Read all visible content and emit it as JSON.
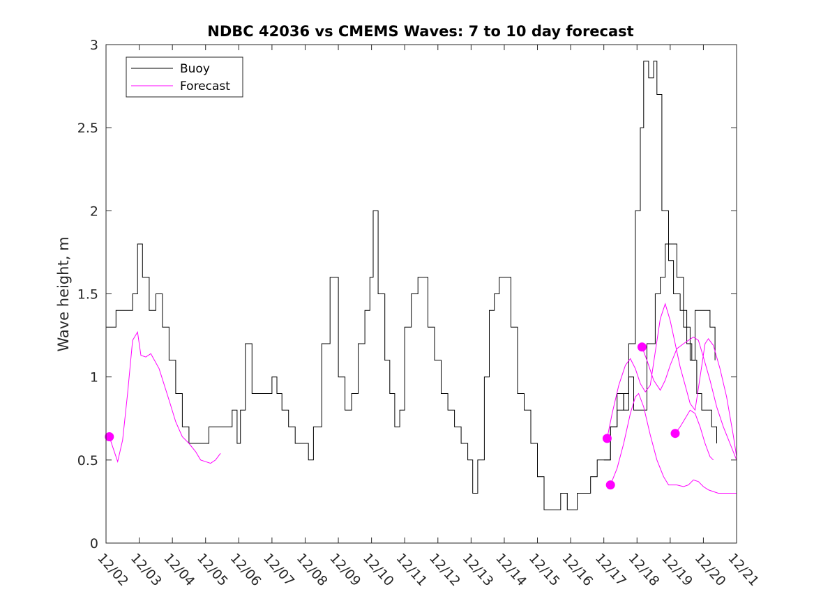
{
  "chart_data": {
    "type": "line",
    "title": "NDBC 42036 vs CMEMS Waves: 7 to 10 day forecast",
    "xlabel": "",
    "ylabel": "Wave height, m",
    "xlim": [
      0,
      19
    ],
    "ylim": [
      0,
      3
    ],
    "x_ticks": [
      0,
      1,
      2,
      3,
      4,
      5,
      6,
      7,
      8,
      9,
      10,
      11,
      12,
      13,
      14,
      15,
      16,
      17,
      18,
      19
    ],
    "x_tick_labels": [
      "12/02",
      "12/03",
      "12/04",
      "12/05",
      "12/06",
      "12/07",
      "12/08",
      "12/09",
      "12/10",
      "12/11",
      "12/12",
      "12/13",
      "12/14",
      "12/15",
      "12/16",
      "12/17",
      "12/18",
      "12/19",
      "12/20",
      "12/21"
    ],
    "y_ticks": [
      0,
      0.5,
      1,
      1.5,
      2,
      2.5,
      3
    ],
    "y_tick_labels": [
      "0",
      "0.5",
      "1",
      "1.5",
      "2",
      "2.5",
      "3"
    ],
    "grid": false,
    "legend_position": "top-left",
    "series": [
      {
        "name": "Buoy",
        "color": "#000000",
        "step": 0.04,
        "anchors": [
          [
            0,
            1.3
          ],
          [
            0.3,
            1.35
          ],
          [
            0.6,
            1.4
          ],
          [
            0.8,
            1.5
          ],
          [
            0.95,
            1.8
          ],
          [
            1.1,
            1.6
          ],
          [
            1.3,
            1.45
          ],
          [
            1.5,
            1.5
          ],
          [
            1.7,
            1.3
          ],
          [
            1.9,
            1.1
          ],
          [
            2.1,
            0.85
          ],
          [
            2.3,
            0.7
          ],
          [
            2.5,
            0.6
          ],
          [
            2.7,
            0.55
          ],
          [
            2.9,
            0.62
          ],
          [
            3.1,
            0.65
          ],
          [
            3.3,
            0.7
          ],
          [
            3.5,
            0.72
          ],
          [
            3.65,
            0.7
          ],
          [
            3.8,
            0.78
          ],
          [
            3.95,
            0.62
          ],
          [
            4.05,
            0.8
          ],
          [
            4.2,
            1.2
          ],
          [
            4.4,
            0.9
          ],
          [
            4.6,
            0.85
          ],
          [
            4.8,
            0.95
          ],
          [
            5.0,
            0.97
          ],
          [
            5.15,
            0.85
          ],
          [
            5.3,
            0.75
          ],
          [
            5.5,
            0.65
          ],
          [
            5.7,
            0.6
          ],
          [
            5.9,
            0.55
          ],
          [
            6.1,
            0.5
          ],
          [
            6.25,
            0.7
          ],
          [
            6.5,
            1.2
          ],
          [
            6.75,
            1.55
          ],
          [
            7.0,
            1.0
          ],
          [
            7.2,
            0.75
          ],
          [
            7.4,
            0.9
          ],
          [
            7.6,
            1.2
          ],
          [
            7.8,
            1.45
          ],
          [
            7.95,
            1.6
          ],
          [
            8.05,
            2.0
          ],
          [
            8.2,
            1.5
          ],
          [
            8.4,
            1.15
          ],
          [
            8.55,
            0.85
          ],
          [
            8.7,
            0.65
          ],
          [
            8.85,
            0.8
          ],
          [
            9.0,
            1.3
          ],
          [
            9.2,
            1.5
          ],
          [
            9.4,
            1.65
          ],
          [
            9.5,
            1.55
          ],
          [
            9.7,
            1.3
          ],
          [
            9.9,
            1.1
          ],
          [
            10.1,
            0.95
          ],
          [
            10.3,
            0.75
          ],
          [
            10.5,
            0.65
          ],
          [
            10.7,
            0.6
          ],
          [
            10.9,
            0.45
          ],
          [
            11.05,
            0.3
          ],
          [
            11.2,
            0.5
          ],
          [
            11.4,
            1.0
          ],
          [
            11.55,
            1.4
          ],
          [
            11.7,
            1.5
          ],
          [
            11.85,
            1.65
          ],
          [
            12.0,
            1.6
          ],
          [
            12.2,
            1.3
          ],
          [
            12.4,
            0.95
          ],
          [
            12.6,
            0.75
          ],
          [
            12.8,
            0.55
          ],
          [
            13.0,
            0.4
          ],
          [
            13.2,
            0.2
          ],
          [
            13.5,
            0.2
          ],
          [
            13.7,
            0.3
          ],
          [
            13.9,
            0.2
          ],
          [
            14.2,
            0.3
          ],
          [
            14.4,
            0.35
          ],
          [
            14.6,
            0.4
          ],
          [
            14.8,
            0.45
          ],
          [
            15.0,
            0.5
          ],
          [
            15.2,
            0.65
          ],
          [
            15.4,
            0.8
          ],
          [
            15.6,
            0.9
          ],
          [
            15.75,
            1.2
          ],
          [
            15.95,
            2.0
          ],
          [
            16.1,
            2.5
          ],
          [
            16.2,
            2.9
          ],
          [
            16.35,
            2.75
          ],
          [
            16.5,
            2.85
          ],
          [
            16.6,
            2.7
          ],
          [
            16.75,
            2.0
          ],
          [
            16.95,
            1.7
          ],
          [
            17.1,
            1.5
          ],
          [
            17.3,
            1.4
          ],
          [
            17.5,
            1.2
          ],
          [
            17.65,
            1.05
          ],
          [
            17.8,
            0.9
          ],
          [
            17.95,
            0.8
          ],
          [
            18.1,
            0.75
          ],
          [
            18.25,
            0.65
          ],
          [
            18.4,
            0.6
          ]
        ]
      },
      {
        "name": "Buoy",
        "color": "#000000",
        "step": 0.04,
        "anchors": [
          [
            15.0,
            0.5
          ],
          [
            15.2,
            0.7
          ],
          [
            15.4,
            0.85
          ],
          [
            15.6,
            0.75
          ],
          [
            15.75,
            1.0
          ],
          [
            15.9,
            0.8
          ],
          [
            16.1,
            0.8
          ],
          [
            16.3,
            1.2
          ],
          [
            16.55,
            1.5
          ],
          [
            16.7,
            1.6
          ],
          [
            16.85,
            1.8
          ],
          [
            17.0,
            1.75
          ],
          [
            17.2,
            1.55
          ],
          [
            17.4,
            1.3
          ],
          [
            17.6,
            1.1
          ],
          [
            17.75,
            1.4
          ],
          [
            17.9,
            1.35
          ],
          [
            18.05,
            1.4
          ],
          [
            18.2,
            1.3
          ],
          [
            18.35,
            1.15
          ]
        ]
      },
      {
        "name": "Forecast",
        "color": "#ff00ff",
        "anchors": [
          [
            0.1,
            0.64
          ],
          [
            0.2,
            0.58
          ],
          [
            0.35,
            0.49
          ],
          [
            0.5,
            0.62
          ],
          [
            0.65,
            0.9
          ],
          [
            0.8,
            1.22
          ],
          [
            0.95,
            1.27
          ],
          [
            1.05,
            1.13
          ],
          [
            1.2,
            1.12
          ],
          [
            1.35,
            1.14
          ],
          [
            1.6,
            1.05
          ],
          [
            1.9,
            0.86
          ],
          [
            2.1,
            0.73
          ],
          [
            2.3,
            0.64
          ],
          [
            2.5,
            0.6
          ],
          [
            2.7,
            0.55
          ],
          [
            2.85,
            0.5
          ],
          [
            3.0,
            0.49
          ],
          [
            3.15,
            0.48
          ],
          [
            3.3,
            0.5
          ],
          [
            3.45,
            0.54
          ]
        ]
      },
      {
        "name": "Forecast",
        "color": "#ff00ff",
        "anchors": [
          [
            15.1,
            0.63
          ],
          [
            15.25,
            0.78
          ],
          [
            15.45,
            0.95
          ],
          [
            15.65,
            1.07
          ],
          [
            15.8,
            1.11
          ],
          [
            15.95,
            1.05
          ],
          [
            16.1,
            0.96
          ],
          [
            16.25,
            0.91
          ],
          [
            16.4,
            0.95
          ],
          [
            16.55,
            1.15
          ],
          [
            16.7,
            1.35
          ],
          [
            16.85,
            1.44
          ],
          [
            17.0,
            1.34
          ],
          [
            17.15,
            1.2
          ],
          [
            17.3,
            1.06
          ],
          [
            17.45,
            0.95
          ],
          [
            17.6,
            0.84
          ],
          [
            17.75,
            0.8
          ],
          [
            17.9,
            1.0
          ],
          [
            18.05,
            1.2
          ],
          [
            18.15,
            1.23
          ],
          [
            18.3,
            1.19
          ],
          [
            18.5,
            1.05
          ],
          [
            18.7,
            0.88
          ],
          [
            18.9,
            0.65
          ],
          [
            19.0,
            0.52
          ]
        ]
      },
      {
        "name": "Forecast",
        "color": "#ff00ff",
        "anchors": [
          [
            16.15,
            1.18
          ],
          [
            16.3,
            1.1
          ],
          [
            16.5,
            0.98
          ],
          [
            16.7,
            0.92
          ],
          [
            16.85,
            0.98
          ],
          [
            17.0,
            1.07
          ],
          [
            17.2,
            1.17
          ],
          [
            17.4,
            1.2
          ],
          [
            17.55,
            1.22
          ],
          [
            17.7,
            1.24
          ],
          [
            17.85,
            1.22
          ],
          [
            18.0,
            1.12
          ],
          [
            18.2,
            0.98
          ],
          [
            18.4,
            0.82
          ],
          [
            18.6,
            0.7
          ],
          [
            18.8,
            0.6
          ],
          [
            19.0,
            0.5
          ]
        ]
      },
      {
        "name": "Forecast",
        "color": "#ff00ff",
        "anchors": [
          [
            15.2,
            0.35
          ],
          [
            15.4,
            0.45
          ],
          [
            15.6,
            0.6
          ],
          [
            15.8,
            0.78
          ],
          [
            15.95,
            0.88
          ],
          [
            16.05,
            0.9
          ],
          [
            16.2,
            0.82
          ],
          [
            16.4,
            0.65
          ],
          [
            16.6,
            0.5
          ],
          [
            16.8,
            0.4
          ],
          [
            16.95,
            0.35
          ],
          [
            17.2,
            0.35
          ],
          [
            17.4,
            0.34
          ],
          [
            17.55,
            0.35
          ],
          [
            17.7,
            0.38
          ],
          [
            17.85,
            0.37
          ],
          [
            18.0,
            0.34
          ],
          [
            18.15,
            0.32
          ],
          [
            18.3,
            0.31
          ],
          [
            18.45,
            0.3
          ],
          [
            19.0,
            0.3
          ]
        ]
      },
      {
        "name": "Forecast",
        "color": "#ff00ff",
        "anchors": [
          [
            17.15,
            0.66
          ],
          [
            17.3,
            0.7
          ],
          [
            17.45,
            0.75
          ],
          [
            17.6,
            0.8
          ],
          [
            17.75,
            0.78
          ],
          [
            17.9,
            0.7
          ],
          [
            18.05,
            0.6
          ],
          [
            18.2,
            0.52
          ],
          [
            18.3,
            0.5
          ]
        ]
      }
    ],
    "markers": [
      {
        "series": "Forecast",
        "color": "#ff00ff",
        "x": 0.1,
        "y": 0.64
      },
      {
        "series": "Forecast",
        "color": "#ff00ff",
        "x": 15.1,
        "y": 0.63
      },
      {
        "series": "Forecast",
        "color": "#ff00ff",
        "x": 16.15,
        "y": 1.18
      },
      {
        "series": "Forecast",
        "color": "#ff00ff",
        "x": 15.2,
        "y": 0.35
      },
      {
        "series": "Forecast",
        "color": "#ff00ff",
        "x": 17.15,
        "y": 0.66
      }
    ],
    "legend": [
      {
        "label": "Buoy",
        "color": "#000000"
      },
      {
        "label": "Forecast",
        "color": "#ff00ff"
      }
    ]
  }
}
